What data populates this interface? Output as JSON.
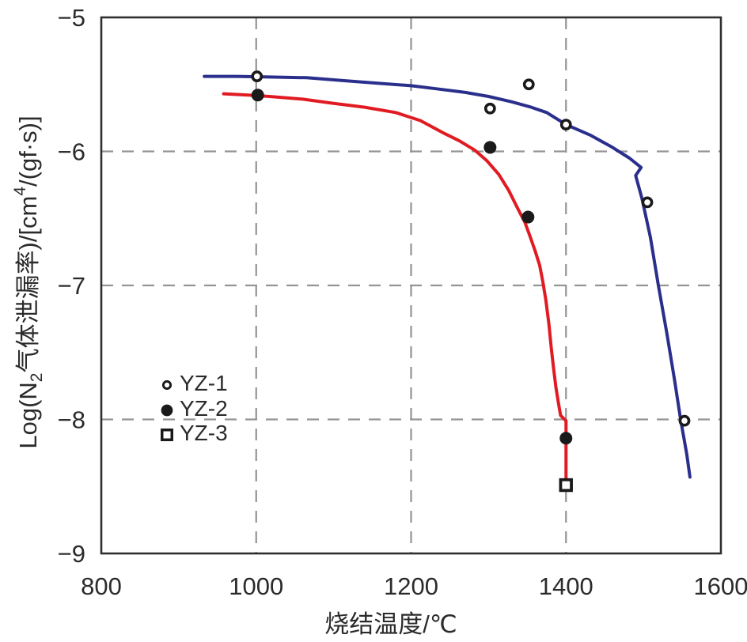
{
  "chart_data": {
    "type": "scatter",
    "title": "",
    "xlabel": "烧结温度/℃",
    "ylabel": "Log(N2气体泄漏率)/[cm4/(gf·s)]",
    "ylabel_parts": [
      {
        "text": "Log(N",
        "style": "normal"
      },
      {
        "text": "2",
        "style": "sub"
      },
      {
        "text": "气体泄漏率)/[cm",
        "style": "normal"
      },
      {
        "text": "4",
        "style": "sup"
      },
      {
        "text": "/(gf·s)]",
        "style": "normal"
      }
    ],
    "xlim": [
      800,
      1600
    ],
    "ylim": [
      -9,
      -5
    ],
    "xticks": [
      {
        "v": 800,
        "label": "800"
      },
      {
        "v": 1000,
        "label": "1000"
      },
      {
        "v": 1200,
        "label": "1200"
      },
      {
        "v": 1400,
        "label": "1400"
      },
      {
        "v": 1600,
        "label": "1600"
      }
    ],
    "yticks": [
      {
        "v": -5,
        "label": "−5"
      },
      {
        "v": -6,
        "label": "−6"
      },
      {
        "v": -7,
        "label": "−7"
      },
      {
        "v": -8,
        "label": "−8"
      },
      {
        "v": -9,
        "label": "−9"
      }
    ],
    "grid": {
      "x": [
        1000,
        1200,
        1400
      ],
      "y": [
        -6,
        -7,
        -8
      ],
      "style": "dashed",
      "color": "#949494"
    },
    "frame_color": "#2f2f2f",
    "marker_color": "#1a1a1a",
    "series": [
      {
        "name": "YZ-1",
        "marker": "open-circle",
        "points": [
          [
            1001,
            -5.44
          ],
          [
            1302,
            -5.68
          ],
          [
            1352,
            -5.5
          ],
          [
            1400,
            -5.8
          ],
          [
            1505,
            -6.38
          ],
          [
            1553,
            -8.01
          ]
        ]
      },
      {
        "name": "YZ-2",
        "marker": "filled-circle",
        "points": [
          [
            1002,
            -5.58
          ],
          [
            1302,
            -5.97
          ],
          [
            1351,
            -6.49
          ],
          [
            1400,
            -8.14
          ]
        ]
      },
      {
        "name": "YZ-3",
        "marker": "open-square",
        "points": [
          [
            1400,
            -8.49
          ]
        ]
      }
    ],
    "curves": [
      {
        "name": "YZ-1-fit",
        "color": "#2a2f8c",
        "points": [
          [
            933,
            -5.44
          ],
          [
            975,
            -5.44
          ],
          [
            1017,
            -5.445
          ],
          [
            1065,
            -5.45
          ],
          [
            1110,
            -5.47
          ],
          [
            1155,
            -5.49
          ],
          [
            1200,
            -5.51
          ],
          [
            1236,
            -5.535
          ],
          [
            1270,
            -5.56
          ],
          [
            1300,
            -5.59
          ],
          [
            1330,
            -5.63
          ],
          [
            1355,
            -5.67
          ],
          [
            1375,
            -5.71
          ],
          [
            1400,
            -5.8
          ],
          [
            1432,
            -5.88
          ],
          [
            1460,
            -5.97
          ],
          [
            1482,
            -6.05
          ],
          [
            1497,
            -6.12
          ],
          [
            1490,
            -6.18
          ],
          [
            1498,
            -6.35
          ],
          [
            1509,
            -6.64
          ],
          [
            1519,
            -6.99
          ],
          [
            1530,
            -7.35
          ],
          [
            1540,
            -7.7
          ],
          [
            1548,
            -8.0
          ],
          [
            1556,
            -8.26
          ],
          [
            1560,
            -8.43
          ]
        ]
      },
      {
        "name": "YZ-2-fit",
        "color": "#e11b22",
        "points": [
          [
            958,
            -5.57
          ],
          [
            990,
            -5.58
          ],
          [
            1017,
            -5.59
          ],
          [
            1060,
            -5.61
          ],
          [
            1098,
            -5.64
          ],
          [
            1140,
            -5.67
          ],
          [
            1180,
            -5.71
          ],
          [
            1212,
            -5.77
          ],
          [
            1241,
            -5.86
          ],
          [
            1262,
            -5.92
          ],
          [
            1282,
            -5.99
          ],
          [
            1298,
            -6.07
          ],
          [
            1313,
            -6.17
          ],
          [
            1326,
            -6.29
          ],
          [
            1338,
            -6.43
          ],
          [
            1347,
            -6.53
          ],
          [
            1354,
            -6.64
          ],
          [
            1360,
            -6.74
          ],
          [
            1366,
            -6.85
          ],
          [
            1370,
            -6.97
          ],
          [
            1374,
            -7.11
          ],
          [
            1378,
            -7.29
          ],
          [
            1381,
            -7.47
          ],
          [
            1384,
            -7.62
          ],
          [
            1387,
            -7.76
          ],
          [
            1390,
            -7.87
          ],
          [
            1393,
            -7.97
          ],
          [
            1400,
            -8.01
          ],
          [
            1400,
            -8.44
          ]
        ]
      }
    ],
    "legend": {
      "position": "inside-left",
      "items": [
        {
          "label": "YZ-1",
          "marker": "open-circle"
        },
        {
          "label": "YZ-2",
          "marker": "filled-circle"
        },
        {
          "label": "YZ-3",
          "marker": "open-square"
        }
      ]
    }
  }
}
